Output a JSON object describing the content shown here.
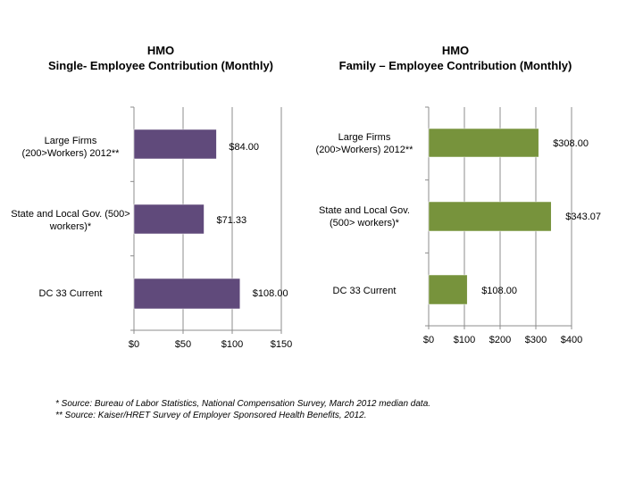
{
  "chart_data": [
    {
      "type": "bar",
      "orientation": "horizontal",
      "title": "HMO",
      "subtitle": "Single- Employee Contribution (Monthly)",
      "categories": [
        [
          "Large Firms",
          "(200>Workers) 2012**"
        ],
        [
          "State and Local Gov. (500>",
          "workers)*"
        ],
        [
          "DC 33 Current"
        ]
      ],
      "values": [
        84.0,
        71.33,
        108.0
      ],
      "labels": [
        "$84.00",
        "$71.33",
        "$108.00"
      ],
      "xlim": [
        0,
        150
      ],
      "ticks": [
        0,
        50,
        100,
        150
      ],
      "tick_labels": [
        "$0",
        "$50",
        "$100",
        "$150"
      ],
      "color": "#604a7b",
      "grid": true
    },
    {
      "type": "bar",
      "orientation": "horizontal",
      "title": "HMO",
      "subtitle": "Family – Employee Contribution (Monthly)",
      "categories": [
        [
          "Large Firms",
          "(200>Workers) 2012**"
        ],
        [
          "State and Local Gov.",
          "(500> workers)*"
        ],
        [
          "DC 33 Current"
        ]
      ],
      "values": [
        308.0,
        343.07,
        108.0
      ],
      "labels": [
        "$308.00",
        "$343.07",
        "$108.00"
      ],
      "xlim": [
        0,
        400
      ],
      "ticks": [
        0,
        100,
        200,
        300,
        400
      ],
      "tick_labels": [
        "$0",
        "$100",
        "$200",
        "$300",
        "$400"
      ],
      "color": "#77933c",
      "grid": true
    }
  ],
  "footnotes": {
    "line1": "*  Source:  Bureau of Labor Statistics, National Compensation Survey, March 2012 median data.",
    "line2": "** Source: Kaiser/HRET Survey of Employer Sponsored Health Benefits, 2012."
  }
}
